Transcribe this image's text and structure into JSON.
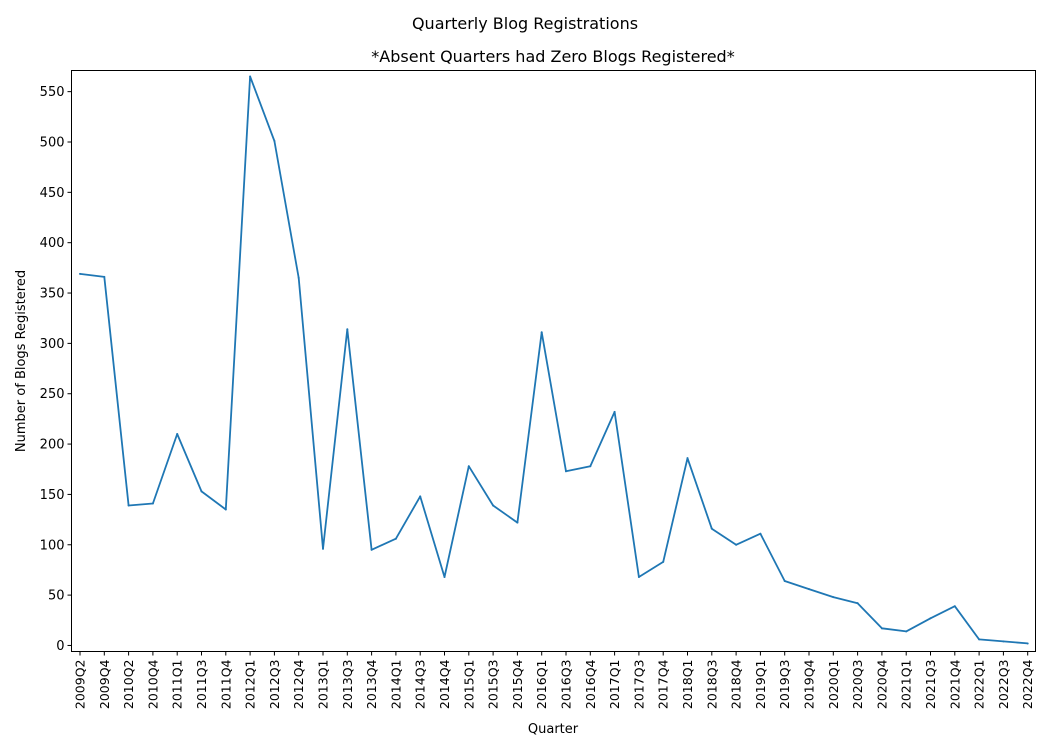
{
  "suptitle": "Quarterly Blog Registrations",
  "chart_data": {
    "type": "line",
    "title": "*Absent Quarters had Zero Blogs Registered*",
    "xlabel": "Quarter",
    "ylabel": "Number of Blogs Registered",
    "ylim": [
      -6,
      571
    ],
    "yticks": [
      0,
      50,
      100,
      150,
      200,
      250,
      300,
      350,
      400,
      450,
      500,
      550
    ],
    "grid": false,
    "line_color": "#1f77b4",
    "categories": [
      "2009Q2",
      "2009Q4",
      "2010Q2",
      "2010Q4",
      "2011Q1",
      "2011Q3",
      "2011Q4",
      "2012Q1",
      "2012Q3",
      "2012Q4",
      "2013Q1",
      "2013Q3",
      "2013Q4",
      "2014Q1",
      "2014Q3",
      "2014Q4",
      "2015Q1",
      "2015Q3",
      "2015Q4",
      "2016Q1",
      "2016Q3",
      "2016Q4",
      "2017Q1",
      "2017Q3",
      "2017Q4",
      "2018Q1",
      "2018Q3",
      "2018Q4",
      "2019Q1",
      "2019Q3",
      "2019Q4",
      "2020Q1",
      "2020Q3",
      "2020Q4",
      "2021Q1",
      "2021Q3",
      "2021Q4",
      "2022Q1",
      "2022Q3",
      "2022Q4"
    ],
    "values": [
      369,
      366,
      139,
      141,
      210,
      153,
      135,
      565,
      501,
      365,
      96,
      314,
      95,
      106,
      148,
      68,
      178,
      139,
      122,
      311,
      173,
      178,
      232,
      68,
      83,
      186,
      116,
      100,
      111,
      64,
      56,
      48,
      42,
      17,
      14,
      27,
      39,
      6,
      4,
      2
    ]
  }
}
